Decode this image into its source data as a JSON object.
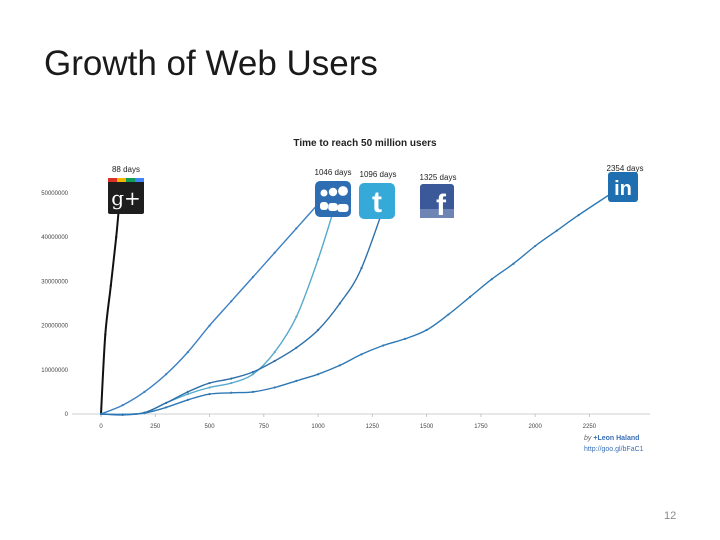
{
  "slide": {
    "title": "Growth of Web Users",
    "page_number": "12"
  },
  "credit": {
    "by_prefix": "by",
    "author": "+Leon Haland",
    "link": "http://goo.gl/bFaC1"
  },
  "chart_data": {
    "type": "line",
    "title": "Time to reach 50 million users",
    "xlabel": "",
    "ylabel": "",
    "xlim": [
      0,
      2354
    ],
    "ylim": [
      0,
      50000000
    ],
    "x_ticks": [
      "0",
      "250",
      "500",
      "750",
      "1000",
      "1250",
      "1500",
      "1750",
      "2000",
      "2250"
    ],
    "y_ticks": [
      "0",
      "10000000",
      "20000000",
      "30000000",
      "40000000",
      "50000000"
    ],
    "grid": false,
    "series": [
      {
        "name": "Google+",
        "label": "88 days",
        "icon": "google-plus-icon",
        "color": "#111111",
        "x": [
          0,
          20,
          45,
          70,
          88
        ],
        "y": [
          0,
          18000000,
          29000000,
          40000000,
          50000000
        ]
      },
      {
        "name": "MySpace",
        "label": "1046 days",
        "icon": "myspace-icon",
        "color": "#3b7fc4",
        "x": [
          0,
          100,
          200,
          300,
          400,
          500,
          600,
          700,
          800,
          900,
          1000,
          1046
        ],
        "y": [
          0,
          2000000,
          5000000,
          9000000,
          14000000,
          20000000,
          25500000,
          31000000,
          36500000,
          42000000,
          47500000,
          50000000
        ]
      },
      {
        "name": "Twitter",
        "label": "1096 days",
        "icon": "twitter-icon",
        "color": "#55a9cc",
        "x": [
          0,
          100,
          200,
          300,
          400,
          500,
          600,
          700,
          800,
          900,
          1000,
          1096
        ],
        "y": [
          0,
          -100000,
          300000,
          2500000,
          4500000,
          6000000,
          7000000,
          9000000,
          14000000,
          22000000,
          35000000,
          50000000
        ]
      },
      {
        "name": "Facebook",
        "label": "1325 days",
        "icon": "facebook-icon",
        "color": "#2e6fa8",
        "x": [
          0,
          100,
          200,
          300,
          400,
          500,
          600,
          700,
          800,
          900,
          1000,
          1100,
          1200,
          1325
        ],
        "y": [
          0,
          -200000,
          300000,
          2500000,
          5000000,
          7000000,
          8000000,
          9500000,
          12000000,
          15000000,
          19000000,
          25000000,
          33000000,
          50000000
        ]
      },
      {
        "name": "LinkedIn",
        "label": "2354 days",
        "icon": "linkedin-icon",
        "color": "#2d78b4",
        "x": [
          0,
          100,
          200,
          300,
          400,
          500,
          600,
          700,
          800,
          900,
          1000,
          1100,
          1200,
          1300,
          1400,
          1500,
          1600,
          1700,
          1800,
          1900,
          2000,
          2100,
          2200,
          2354
        ],
        "y": [
          0,
          -100000,
          200000,
          1500000,
          3200000,
          4500000,
          4800000,
          5000000,
          6000000,
          7500000,
          9000000,
          11000000,
          13500000,
          15500000,
          17000000,
          19000000,
          22500000,
          26500000,
          30500000,
          34000000,
          38000000,
          41500000,
          45000000,
          50000000
        ]
      }
    ]
  }
}
